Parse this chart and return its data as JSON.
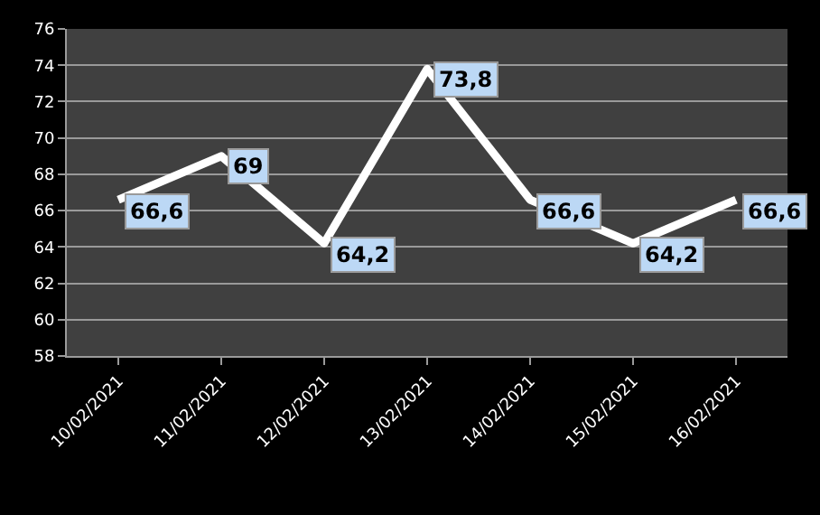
{
  "chart_data": {
    "type": "line",
    "categories": [
      "10/02/2021",
      "11/02/2021",
      "12/02/2021",
      "13/02/2021",
      "14/02/2021",
      "15/02/2021",
      "16/02/2021"
    ],
    "series": [
      {
        "color": "#ffffff",
        "values": [
          66.6,
          69,
          64.2,
          73.8,
          66.6,
          64.2,
          66.6
        ],
        "value_labels": [
          "66,6",
          "69",
          "64,2",
          "73,8",
          "66,6",
          "64,2",
          "66,6"
        ]
      }
    ],
    "ylim": [
      58,
      76
    ],
    "yticks": [
      58,
      60,
      62,
      64,
      66,
      68,
      70,
      72,
      74,
      76
    ],
    "grid": "y",
    "marker": "none",
    "line_style": "solid"
  }
}
